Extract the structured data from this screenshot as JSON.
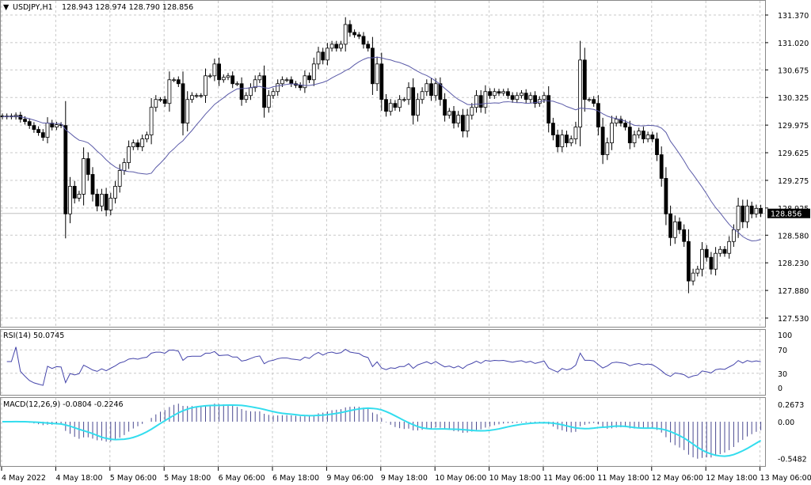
{
  "header": {
    "symbol": "USDJPY,H1",
    "ohlc_text": "128.943 128.974 128.790 128.856"
  },
  "indicators": {
    "rsi_label": "RSI(14) 50.0745",
    "macd_label": "MACD(12,26,9) -0.0804 -0.2246"
  },
  "colors": {
    "ma_line": "#5b5ba8",
    "rsi_line": "#4444aa",
    "macd_hist": "#4a4a90",
    "macd_signal": "#33ddee",
    "grid": "#c8c8c8",
    "current_price_bg": "#000000"
  },
  "chart_data": {
    "type": "candlestick",
    "symbol": "USDJPY",
    "timeframe": "H1",
    "current_price": 128.856,
    "current_price_label": "128.856",
    "price_ticks": [
      "131.370",
      "131.020",
      "130.675",
      "130.325",
      "129.975",
      "129.625",
      "129.275",
      "128.925",
      "128.580",
      "128.230",
      "127.880",
      "127.530"
    ],
    "price_range": [
      127.53,
      131.37
    ],
    "rsi_ticks": [
      "100",
      "70",
      "30",
      "0"
    ],
    "macd_ticks": [
      "0.2673",
      "0.00",
      "-0.5482"
    ],
    "macd_range": [
      -0.5482,
      0.2673
    ],
    "time_labels": [
      "4 May 2022",
      "4 May 18:00",
      "5 May 06:00",
      "5 May 18:00",
      "6 May 06:00",
      "6 May 18:00",
      "9 May 06:00",
      "9 May 18:00",
      "10 May 06:00",
      "10 May 18:00",
      "11 May 06:00",
      "11 May 18:00",
      "12 May 06:00",
      "12 May 18:00",
      "13 May 06:00"
    ],
    "grid": true,
    "closes": [
      130.08,
      130.09,
      130.08,
      130.1,
      130.05,
      130.02,
      129.97,
      129.92,
      129.88,
      129.82,
      130.0,
      129.95,
      129.98,
      129.97,
      128.85,
      129.2,
      129.05,
      129.1,
      129.55,
      129.35,
      129.1,
      128.95,
      129.1,
      128.9,
      129.05,
      129.2,
      129.4,
      129.5,
      129.7,
      129.75,
      129.7,
      129.8,
      129.85,
      130.2,
      130.3,
      130.3,
      130.25,
      130.55,
      130.55,
      130.5,
      130.0,
      130.3,
      130.35,
      130.35,
      130.35,
      130.6,
      130.6,
      130.75,
      130.55,
      130.58,
      130.6,
      130.5,
      130.5,
      130.3,
      130.35,
      130.45,
      130.55,
      130.6,
      130.2,
      130.35,
      130.4,
      130.5,
      130.55,
      130.55,
      130.5,
      130.48,
      130.45,
      130.6,
      130.55,
      130.75,
      130.9,
      130.8,
      130.95,
      131.0,
      130.95,
      131.0,
      131.25,
      131.15,
      131.12,
      131.1,
      131.0,
      130.95,
      130.5,
      130.75,
      130.3,
      130.15,
      130.25,
      130.2,
      130.3,
      130.3,
      130.45,
      130.1,
      130.3,
      130.4,
      130.5,
      130.35,
      130.5,
      130.3,
      130.1,
      130.15,
      130.0,
      130.1,
      129.9,
      130.1,
      130.2,
      130.35,
      130.2,
      130.4,
      130.35,
      130.4,
      130.38,
      130.4,
      130.35,
      130.3,
      130.35,
      130.38,
      130.3,
      130.35,
      130.25,
      130.3,
      130.35,
      130.0,
      129.85,
      129.7,
      129.85,
      129.75,
      129.8,
      129.95,
      130.8,
      130.3,
      130.3,
      130.25,
      129.95,
      129.6,
      129.75,
      130.0,
      130.05,
      130.0,
      129.95,
      129.75,
      129.85,
      129.9,
      129.8,
      129.85,
      129.8,
      129.6,
      129.3,
      128.85,
      128.55,
      128.75,
      128.65,
      128.5,
      128.0,
      128.1,
      128.15,
      128.4,
      128.3,
      128.15,
      128.35,
      128.4,
      128.35,
      128.5,
      128.65,
      128.95,
      128.75,
      128.95,
      128.85,
      128.92,
      128.856
    ],
    "moving_average_period": 20,
    "rsi_period": 14,
    "macd_params": [
      12,
      26,
      9
    ]
  }
}
